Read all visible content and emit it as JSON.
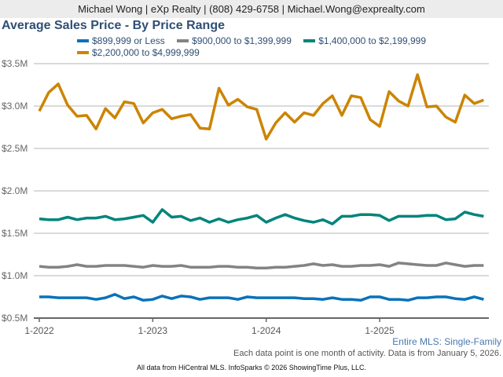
{
  "header": {
    "contact": "Michael Wong | eXp Realty | (808) 429-6758 | Michael.Wong@exprealty.com"
  },
  "chart_data": {
    "type": "line",
    "title": "Average Sales Price - By Price Range",
    "xlabel": "",
    "ylabel": "",
    "ylim": [
      0.5,
      3.5
    ],
    "y_ticks": [
      "$0.5M",
      "$1.0M",
      "$1.5M",
      "$2.0M",
      "$2.5M",
      "$3.0M",
      "$3.5M"
    ],
    "x_ticks": [
      "1-2022",
      "1-2023",
      "1-2024",
      "1-2025"
    ],
    "x_start": "2022-01",
    "x_end": "2025-12",
    "grid": true,
    "legend": "top",
    "series": [
      {
        "name": "$899,999 or Less",
        "color": "#0a72ba",
        "values": [
          0.75,
          0.75,
          0.74,
          0.74,
          0.74,
          0.74,
          0.72,
          0.74,
          0.78,
          0.73,
          0.75,
          0.71,
          0.72,
          0.76,
          0.73,
          0.76,
          0.75,
          0.72,
          0.74,
          0.74,
          0.74,
          0.72,
          0.75,
          0.74,
          0.74,
          0.74,
          0.74,
          0.74,
          0.73,
          0.73,
          0.72,
          0.74,
          0.72,
          0.72,
          0.71,
          0.75,
          0.75,
          0.72,
          0.72,
          0.71,
          0.74,
          0.74,
          0.75,
          0.75,
          0.73,
          0.72,
          0.75,
          0.72
        ]
      },
      {
        "name": "$900,000 to $1,399,999",
        "color": "#838383",
        "values": [
          1.11,
          1.1,
          1.1,
          1.11,
          1.13,
          1.11,
          1.11,
          1.12,
          1.12,
          1.12,
          1.11,
          1.1,
          1.12,
          1.11,
          1.11,
          1.12,
          1.1,
          1.1,
          1.1,
          1.11,
          1.11,
          1.1,
          1.1,
          1.09,
          1.09,
          1.1,
          1.1,
          1.11,
          1.12,
          1.14,
          1.12,
          1.13,
          1.11,
          1.11,
          1.12,
          1.12,
          1.13,
          1.11,
          1.15,
          1.14,
          1.13,
          1.12,
          1.12,
          1.15,
          1.13,
          1.11,
          1.12,
          1.12
        ]
      },
      {
        "name": "$1,400,000 to $2,199,999",
        "color": "#00847c",
        "values": [
          1.67,
          1.66,
          1.66,
          1.69,
          1.66,
          1.68,
          1.68,
          1.7,
          1.66,
          1.67,
          1.69,
          1.71,
          1.63,
          1.78,
          1.69,
          1.7,
          1.65,
          1.68,
          1.63,
          1.67,
          1.63,
          1.66,
          1.68,
          1.71,
          1.63,
          1.68,
          1.72,
          1.68,
          1.65,
          1.63,
          1.66,
          1.61,
          1.7,
          1.7,
          1.72,
          1.72,
          1.71,
          1.65,
          1.7,
          1.7,
          1.7,
          1.71,
          1.71,
          1.66,
          1.67,
          1.75,
          1.72,
          1.7
        ]
      },
      {
        "name": "$2,200,000 to $4,999,999",
        "color": "#cc8400",
        "values": [
          2.94,
          3.16,
          3.26,
          3.01,
          2.88,
          2.89,
          2.73,
          2.97,
          2.86,
          3.05,
          3.03,
          2.8,
          2.92,
          2.96,
          2.85,
          2.88,
          2.9,
          2.74,
          2.73,
          3.21,
          3.01,
          3.08,
          2.99,
          2.96,
          2.61,
          2.8,
          2.92,
          2.81,
          2.92,
          2.89,
          3.03,
          3.12,
          2.89,
          3.12,
          3.1,
          2.84,
          2.76,
          3.17,
          3.06,
          3.0,
          3.37,
          2.99,
          3.0,
          2.87,
          2.81,
          3.13,
          3.03,
          3.07
        ]
      }
    ]
  },
  "footer": {
    "segment": "Entire MLS: Single-Family",
    "note": "Each data point is one month of activity. Data is from January 5, 2026.",
    "credit": "All data from HiCentral MLS. InfoSparks © 2026 ShowingTime Plus, LLC."
  }
}
